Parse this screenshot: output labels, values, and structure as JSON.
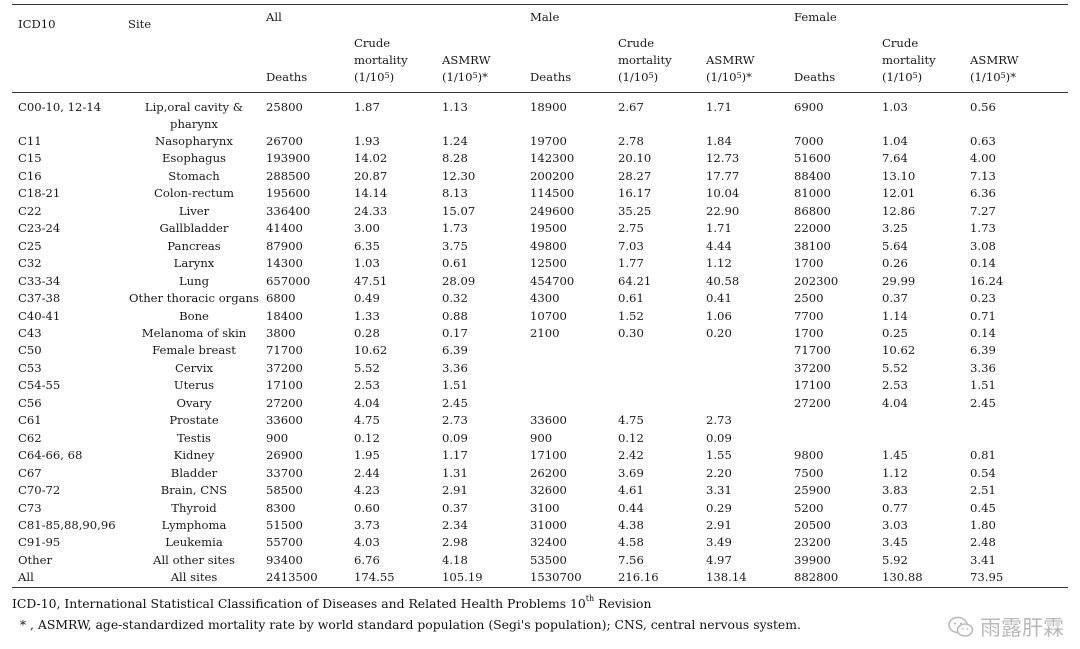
{
  "header": {
    "icd": "ICD10",
    "site": "Site",
    "groups": [
      "All",
      "Male",
      "Female"
    ],
    "deaths": "Deaths",
    "crude": "Crude mortality (1/10",
    "crude_sup": "5",
    "crude_tail": ")",
    "asmrw": "ASMRW (1/10",
    "asmrw_sup": "5",
    "asmrw_tail": ")*"
  },
  "rows": [
    {
      "icd": "C00-10, 12-14",
      "site": "Lip,oral cavity & pharynx",
      "v": [
        "25800",
        "1.87",
        "1.13",
        "18900",
        "2.67",
        "1.71",
        "6900",
        "1.03",
        "0.56"
      ]
    },
    {
      "icd": "C11",
      "site": "Nasopharynx",
      "v": [
        "26700",
        "1.93",
        "1.24",
        "19700",
        "2.78",
        "1.84",
        "7000",
        "1.04",
        "0.63"
      ]
    },
    {
      "icd": "C15",
      "site": "Esophagus",
      "v": [
        "193900",
        "14.02",
        "8.28",
        "142300",
        "20.10",
        "12.73",
        "51600",
        "7.64",
        "4.00"
      ]
    },
    {
      "icd": "C16",
      "site": "Stomach",
      "v": [
        "288500",
        "20.87",
        "12.30",
        "200200",
        "28.27",
        "17.77",
        "88400",
        "13.10",
        "7.13"
      ]
    },
    {
      "icd": "C18-21",
      "site": "Colon-rectum",
      "v": [
        "195600",
        "14.14",
        "8.13",
        "114500",
        "16.17",
        "10.04",
        "81000",
        "12.01",
        "6.36"
      ]
    },
    {
      "icd": "C22",
      "site": "Liver",
      "v": [
        "336400",
        "24.33",
        "15.07",
        "249600",
        "35.25",
        "22.90",
        "86800",
        "12.86",
        "7.27"
      ]
    },
    {
      "icd": "C23-24",
      "site": "Gallbladder",
      "v": [
        "41400",
        "3.00",
        "1.73",
        "19500",
        "2.75",
        "1.71",
        "22000",
        "3.25",
        "1.73"
      ]
    },
    {
      "icd": "C25",
      "site": "Pancreas",
      "v": [
        "87900",
        "6.35",
        "3.75",
        "49800",
        "7.03",
        "4.44",
        "38100",
        "5.64",
        "3.08"
      ]
    },
    {
      "icd": "C32",
      "site": "Larynx",
      "v": [
        "14300",
        "1.03",
        "0.61",
        "12500",
        "1.77",
        "1.12",
        "1700",
        "0.26",
        "0.14"
      ]
    },
    {
      "icd": "C33-34",
      "site": "Lung",
      "v": [
        "657000",
        "47.51",
        "28.09",
        "454700",
        "64.21",
        "40.58",
        "202300",
        "29.99",
        "16.24"
      ]
    },
    {
      "icd": "C37-38",
      "site": "Other thoracic organs",
      "v": [
        "6800",
        "0.49",
        "0.32",
        "4300",
        "0.61",
        "0.41",
        "2500",
        "0.37",
        "0.23"
      ]
    },
    {
      "icd": "C40-41",
      "site": "Bone",
      "v": [
        "18400",
        "1.33",
        "0.88",
        "10700",
        "1.52",
        "1.06",
        "7700",
        "1.14",
        "0.71"
      ]
    },
    {
      "icd": "C43",
      "site": "Melanoma of skin",
      "v": [
        "3800",
        "0.28",
        "0.17",
        "2100",
        "0.30",
        "0.20",
        "1700",
        "0.25",
        "0.14"
      ]
    },
    {
      "icd": "C50",
      "site": "Female breast",
      "v": [
        "71700",
        "10.62",
        "6.39",
        "",
        "",
        "",
        "71700",
        "10.62",
        "6.39"
      ]
    },
    {
      "icd": "C53",
      "site": "Cervix",
      "v": [
        "37200",
        "5.52",
        "3.36",
        "",
        "",
        "",
        "37200",
        "5.52",
        "3.36"
      ]
    },
    {
      "icd": "C54-55",
      "site": "Uterus",
      "v": [
        "17100",
        "2.53",
        "1.51",
        "",
        "",
        "",
        "17100",
        "2.53",
        "1.51"
      ]
    },
    {
      "icd": "C56",
      "site": "Ovary",
      "v": [
        "27200",
        "4.04",
        "2.45",
        "",
        "",
        "",
        "27200",
        "4.04",
        "2.45"
      ]
    },
    {
      "icd": "C61",
      "site": "Prostate",
      "v": [
        "33600",
        "4.75",
        "2.73",
        "33600",
        "4.75",
        "2.73",
        "",
        "",
        ""
      ]
    },
    {
      "icd": "C62",
      "site": "Testis",
      "v": [
        "900",
        "0.12",
        "0.09",
        "900",
        "0.12",
        "0.09",
        "",
        "",
        ""
      ]
    },
    {
      "icd": "C64-66, 68",
      "site": "Kidney",
      "v": [
        "26900",
        "1.95",
        "1.17",
        "17100",
        "2.42",
        "1.55",
        "9800",
        "1.45",
        "0.81"
      ]
    },
    {
      "icd": "C67",
      "site": "Bladder",
      "v": [
        "33700",
        "2.44",
        "1.31",
        "26200",
        "3.69",
        "2.20",
        "7500",
        "1.12",
        "0.54"
      ]
    },
    {
      "icd": "C70-72",
      "site": "Brain, CNS",
      "v": [
        "58500",
        "4.23",
        "2.91",
        "32600",
        "4.61",
        "3.31",
        "25900",
        "3.83",
        "2.51"
      ]
    },
    {
      "icd": "C73",
      "site": "Thyroid",
      "v": [
        "8300",
        "0.60",
        "0.37",
        "3100",
        "0.44",
        "0.29",
        "5200",
        "0.77",
        "0.45"
      ]
    },
    {
      "icd": "C81-85,88,90,96",
      "site": "Lymphoma",
      "v": [
        "51500",
        "3.73",
        "2.34",
        "31000",
        "4.38",
        "2.91",
        "20500",
        "3.03",
        "1.80"
      ]
    },
    {
      "icd": "C91-95",
      "site": "Leukemia",
      "v": [
        "55700",
        "4.03",
        "2.98",
        "32400",
        "4.58",
        "3.49",
        "23200",
        "3.45",
        "2.48"
      ]
    },
    {
      "icd": "Other",
      "site": "All other sites",
      "v": [
        "93400",
        "6.76",
        "4.18",
        "53500",
        "7.56",
        "4.97",
        "39900",
        "5.92",
        "3.41"
      ]
    },
    {
      "icd": "All",
      "site": "All sites",
      "v": [
        "2413500",
        "174.55",
        "105.19",
        "1530700",
        "216.16",
        "138.14",
        "882800",
        "130.88",
        "73.95"
      ]
    }
  ],
  "footnotes": {
    "line1": "ICD-10, International Statistical Classification of Diseases and Related Health Problems 10",
    "line1_sup": "th",
    "line1_tail": " Revision",
    "line2": "* , ASMRW, age-standardized mortality rate by world standard population (Segi's population); CNS, central nervous system."
  },
  "watermark": {
    "text": "雨露肝霖",
    "icon": "wechat-icon"
  }
}
